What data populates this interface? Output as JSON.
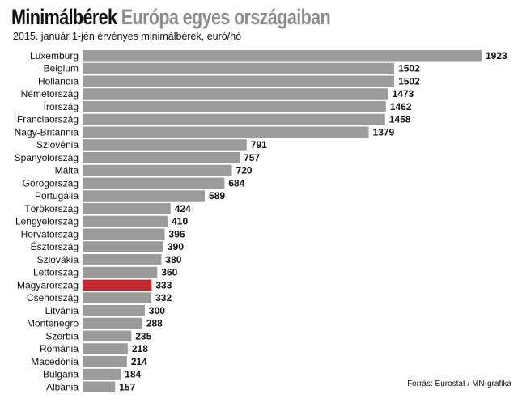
{
  "header": {
    "title_part1": "Minimálbérek",
    "title_part2": "Európa egyes országaiban",
    "subtitle": "2015. január 1-jén érvényes minimálbérek, euró/hó"
  },
  "source": "Forrás: Eurostat / MN-grafika",
  "colors": {
    "bar": "#9b9b9b",
    "highlight": "#c1272d",
    "text": "#111111"
  },
  "chart_data": {
    "type": "bar",
    "orientation": "horizontal",
    "title": "Minimálbérek Európa egyes országaiban",
    "subtitle": "2015. január 1-jén érvényes minimálbérek, euró/hó",
    "categories": [
      "Luxemburg",
      "Belgium",
      "Hollandia",
      "Németország",
      "Írország",
      "Franciaország",
      "Nagy-Britannia",
      "Szlovénia",
      "Spanyolország",
      "Málta",
      "Görögország",
      "Portugália",
      "Törökország",
      "Lengyelország",
      "Horvátország",
      "Észtország",
      "Szlovákia",
      "Lettország",
      "Magyarország",
      "Csehország",
      "Litvánia",
      "Montenegró",
      "Szerbia",
      "Románia",
      "Macedónia",
      "Bulgária",
      "Albánia"
    ],
    "values": [
      1923,
      1502,
      1502,
      1473,
      1462,
      1458,
      1379,
      791,
      757,
      720,
      684,
      589,
      424,
      410,
      396,
      390,
      380,
      360,
      333,
      332,
      300,
      288,
      235,
      218,
      214,
      184,
      157
    ],
    "highlight": "Magyarország",
    "xlim": [
      0,
      1923
    ],
    "grid": false,
    "data_labels": true
  }
}
